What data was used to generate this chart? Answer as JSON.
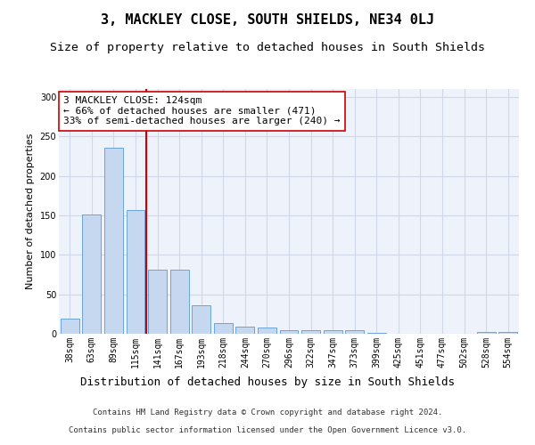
{
  "title": "3, MACKLEY CLOSE, SOUTH SHIELDS, NE34 0LJ",
  "subtitle": "Size of property relative to detached houses in South Shields",
  "xlabel": "Distribution of detached houses by size in South Shields",
  "ylabel": "Number of detached properties",
  "categories": [
    "38sqm",
    "63sqm",
    "89sqm",
    "115sqm",
    "141sqm",
    "167sqm",
    "193sqm",
    "218sqm",
    "244sqm",
    "270sqm",
    "296sqm",
    "322sqm",
    "347sqm",
    "373sqm",
    "399sqm",
    "425sqm",
    "451sqm",
    "477sqm",
    "502sqm",
    "528sqm",
    "554sqm"
  ],
  "values": [
    19,
    151,
    236,
    157,
    81,
    81,
    36,
    14,
    9,
    8,
    5,
    4,
    4,
    4,
    1,
    0,
    0,
    0,
    0,
    2,
    2
  ],
  "bar_color": "#c5d8f0",
  "bar_edge_color": "#5b9bd5",
  "vline_x": 3.5,
  "vline_color": "#cc0000",
  "annotation_text": "3 MACKLEY CLOSE: 124sqm\n← 66% of detached houses are smaller (471)\n33% of semi-detached houses are larger (240) →",
  "annotation_box_color": "#ffffff",
  "annotation_box_edge": "#cc0000",
  "grid_color": "#d0d8e8",
  "background_color": "#eef2fa",
  "footer_line1": "Contains HM Land Registry data © Crown copyright and database right 2024.",
  "footer_line2": "Contains public sector information licensed under the Open Government Licence v3.0.",
  "ylim": [
    0,
    310
  ],
  "title_fontsize": 11,
  "subtitle_fontsize": 9.5,
  "xlabel_fontsize": 9,
  "ylabel_fontsize": 8,
  "tick_fontsize": 7,
  "annotation_fontsize": 8,
  "footer_fontsize": 6.5
}
